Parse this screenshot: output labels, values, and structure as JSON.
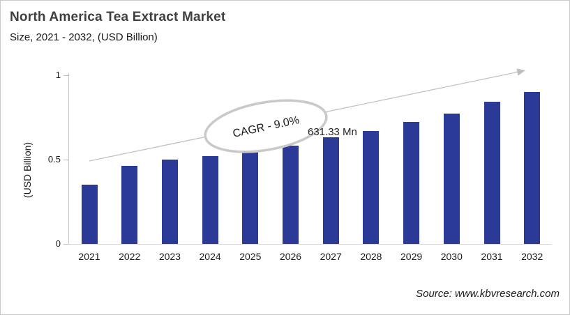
{
  "header": {
    "title": "North America Tea Extract Market",
    "subtitle": "Size, 2021 - 2032, (USD Billion)"
  },
  "chart_data": {
    "type": "bar",
    "title": "North America Tea Extract Market Size, 2021 - 2032, (USD Billion)",
    "categories": [
      "2021",
      "2022",
      "2023",
      "2024",
      "2025",
      "2026",
      "2027",
      "2028",
      "2029",
      "2030",
      "2031",
      "2032"
    ],
    "values": [
      0.35,
      0.46,
      0.5,
      0.52,
      0.55,
      0.58,
      0.63,
      0.67,
      0.72,
      0.77,
      0.84,
      0.9
    ],
    "unit": "USD Billion",
    "ylabel": "(USD Billion)",
    "xlabel": "",
    "yticks": [
      0,
      0.5,
      1
    ],
    "ylim": [
      0,
      1
    ],
    "grid": false,
    "legend": false,
    "colors": {
      "bar": "#2c3a97",
      "trend_arrow": "#c1c1c1",
      "ellipse_stroke": "#c9c9c9"
    },
    "annotations": {
      "cagr_label": "CAGR - 9.0%",
      "data_label": {
        "category": "2027",
        "text": "631.33 Mn",
        "value_billion": 0.63133
      },
      "trend_arrow": true
    }
  },
  "footer": {
    "source": "Source: www.kbvresearch.com"
  }
}
